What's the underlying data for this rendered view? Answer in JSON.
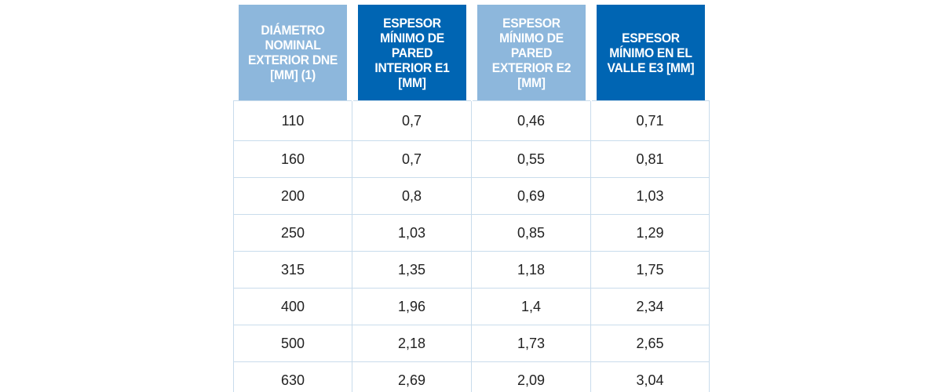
{
  "table": {
    "headers": [
      "DIÁMETRO NOMINAL EXTERIOR DNE [mm] (1)",
      "ESPESOR MÍNIMO DE PARED INTERIOR e1 [mm]",
      "ESPESOR MÍNIMO DE PARED EXTERIOR e2 [mm]",
      "ESPESOR MÍNIMO EN EL VALLE e3 [mm]"
    ],
    "header_colors": [
      "#8db7dc",
      "#0065b3",
      "#8db7dc",
      "#0065b3"
    ],
    "rows": [
      [
        "110",
        "0,7",
        "0,46",
        "0,71"
      ],
      [
        "160",
        "0,7",
        "0,55",
        "0,81"
      ],
      [
        "200",
        "0,8",
        "0,69",
        "1,03"
      ],
      [
        "250",
        "1,03",
        "0,85",
        "1,29"
      ],
      [
        "315",
        "1,35",
        "1,18",
        "1,75"
      ],
      [
        "400",
        "1,96",
        "1,4",
        "2,34"
      ],
      [
        "500",
        "2,18",
        "1,73",
        "2,65"
      ],
      [
        "630",
        "2,69",
        "2,09",
        "3,04"
      ]
    ]
  }
}
